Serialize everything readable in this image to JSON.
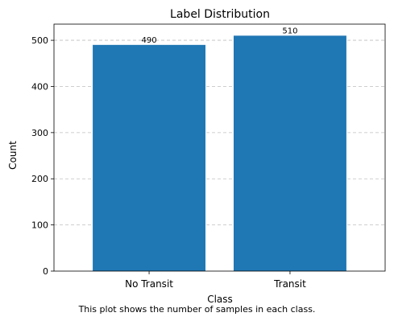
{
  "chart_data": {
    "type": "bar",
    "title": "Label Distribution",
    "xlabel": "Class",
    "ylabel": "Count",
    "categories": [
      "No Transit",
      "Transit"
    ],
    "values": [
      490,
      510
    ],
    "data_labels": [
      "490",
      "510"
    ],
    "ylim": [
      0,
      535
    ],
    "yticks": [
      0,
      100,
      200,
      300,
      400,
      500
    ],
    "grid": "y-dashed",
    "bar_color": "#1f77b4",
    "grid_color": "#bfbfbf"
  },
  "caption": "This plot shows the number of samples in each class."
}
